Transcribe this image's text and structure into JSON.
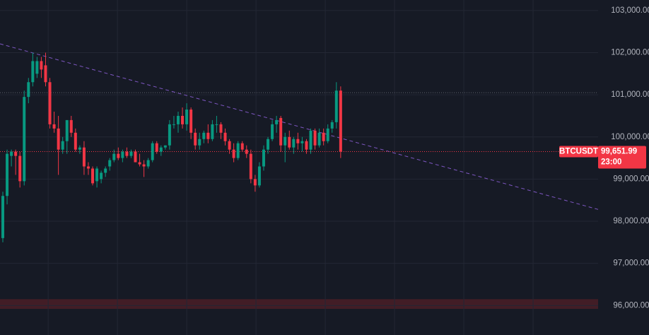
{
  "chart_data": {
    "type": "candlestick",
    "up_color": "#089981",
    "down_color": "#f23645",
    "grid_color": "#232734",
    "xlim": [
      -0.66,
      139.2
    ],
    "ylim": [
      95300,
      103250
    ],
    "yticks": [
      {
        "value": 96000,
        "label": "96,000.00"
      },
      {
        "value": 97000,
        "label": "97,000.00"
      },
      {
        "value": 98000,
        "label": "98,000.00"
      },
      {
        "value": 99000,
        "label": "99,000.00"
      },
      {
        "value": 100000,
        "label": "100,000.00"
      },
      {
        "value": 101000,
        "label": "101,000.00"
      },
      {
        "value": 102000,
        "label": "102,000.00"
      },
      {
        "value": 103000,
        "label": "103,000.00"
      }
    ],
    "xgrid": [
      10.6,
      26.8,
      43,
      59.2,
      75.4,
      91.6,
      107.8,
      124
    ],
    "open": [
      97600,
      98600,
      99550,
      99650,
      99550,
      98950,
      100950,
      101300,
      101500,
      101800,
      101700,
      101300,
      100300,
      100200,
      99700,
      99900,
      100400,
      100100,
      99700,
      99750,
      99300,
      99250,
      98950,
      99000,
      99150,
      99300,
      99450,
      99600,
      99500,
      99650,
      99550,
      99650,
      99400,
      99350,
      99300,
      99450,
      99850,
      99650,
      99750,
      99800,
      100300,
      100300,
      100500,
      100300,
      100650,
      100100,
      99800,
      99950,
      100100,
      99950,
      100300,
      100300,
      100100,
      99900,
      99700,
      99500,
      99850,
      99700,
      99600,
      99000,
      98850,
      99300,
      99700,
      99950,
      100300,
      100450,
      99800,
      100000,
      99750,
      99950,
      99850,
      99900,
      99700,
      100150,
      99800,
      100100,
      99900,
      100200,
      100350,
      101100
    ],
    "high": [
      98700,
      99700,
      99700,
      99700,
      99650,
      101100,
      101400,
      102000,
      101900,
      101900,
      102000,
      101400,
      100600,
      100500,
      100000,
      100400,
      100500,
      100200,
      99800,
      99900,
      99400,
      99300,
      99300,
      99200,
      99300,
      99500,
      99700,
      99750,
      99700,
      99750,
      99700,
      99700,
      99600,
      99450,
      99500,
      99900,
      99900,
      99800,
      99800,
      100400,
      100500,
      100600,
      100700,
      100800,
      100700,
      100200,
      100100,
      100150,
      100300,
      100400,
      100500,
      100350,
      100200,
      99950,
      99850,
      99900,
      99900,
      99800,
      99700,
      99100,
      99400,
      99800,
      100000,
      100400,
      100500,
      100500,
      100100,
      100150,
      100000,
      100100,
      100000,
      99950,
      100200,
      100200,
      100200,
      100200,
      100300,
      100400,
      101300,
      101200
    ],
    "low": [
      97500,
      98400,
      99300,
      99100,
      98800,
      98850,
      100800,
      101200,
      101400,
      101400,
      101200,
      100200,
      100100,
      99100,
      99600,
      99600,
      100000,
      99650,
      99600,
      99100,
      99100,
      98850,
      98800,
      98900,
      99050,
      99200,
      99400,
      99450,
      99400,
      99500,
      99500,
      99400,
      99300,
      99050,
      99250,
      99400,
      99600,
      99550,
      99700,
      99700,
      100200,
      100100,
      100200,
      100150,
      99950,
      99700,
      99700,
      99850,
      99850,
      99900,
      100100,
      99950,
      99800,
      99600,
      99400,
      99450,
      99650,
      99500,
      98900,
      98700,
      98800,
      99200,
      99600,
      99900,
      100100,
      99650,
      99400,
      99700,
      99600,
      99700,
      99650,
      99600,
      99600,
      99700,
      99750,
      99800,
      99850,
      100100,
      100200,
      99500
    ],
    "close": [
      98600,
      99600,
      99650,
      99550,
      98950,
      100950,
      101300,
      101800,
      101800,
      101600,
      101300,
      100300,
      100200,
      99700,
      99900,
      100400,
      100100,
      99700,
      99750,
      99300,
      99250,
      98900,
      99250,
      99150,
      99250,
      99450,
      99600,
      99500,
      99650,
      99550,
      99650,
      99400,
      99350,
      99300,
      99450,
      99850,
      99650,
      99750,
      99800,
      100300,
      100300,
      100500,
      100300,
      100650,
      100100,
      99800,
      99950,
      100100,
      99950,
      100300,
      100300,
      100100,
      99900,
      99700,
      99500,
      99850,
      99700,
      99600,
      99000,
      98850,
      99300,
      99700,
      99950,
      100300,
      100400,
      99800,
      100000,
      99750,
      99950,
      99850,
      99900,
      99700,
      100150,
      99800,
      100100,
      99900,
      100200,
      100350,
      101100,
      99651.99
    ],
    "trendline": {
      "color": "#7e57c2",
      "x": [
        -0.66,
        139.2
      ],
      "values": [
        102210,
        98280
      ]
    },
    "reference_line": {
      "value": 101050,
      "color": "#5d606b"
    },
    "zone": {
      "range": [
        95920,
        96150
      ],
      "color": "#4a1f27"
    },
    "symbol": "BTCUSDT",
    "last_price": {
      "value": 99651.99,
      "label": "99,651.99"
    },
    "countdown": "23:00"
  }
}
